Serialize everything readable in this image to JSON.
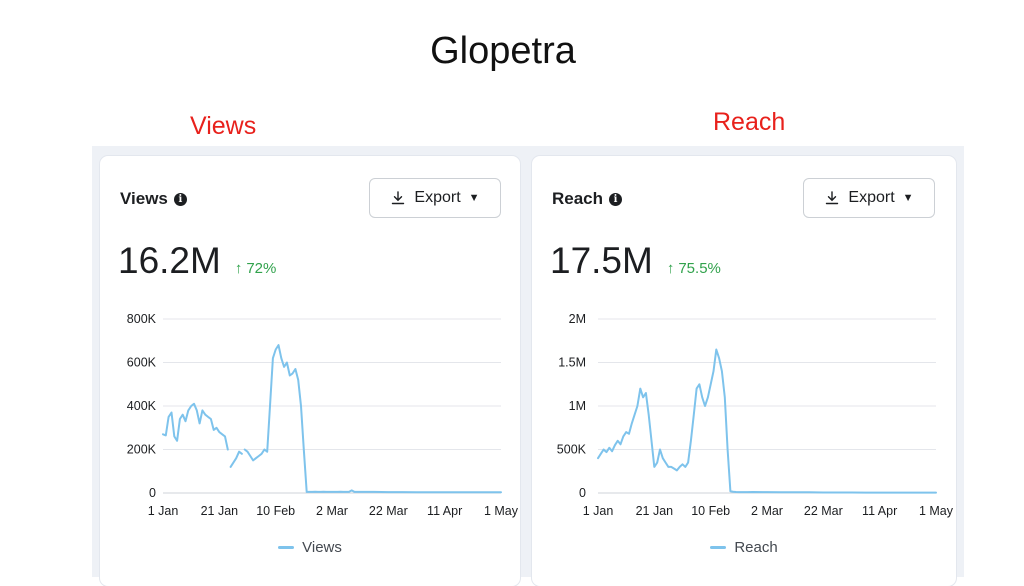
{
  "page_title": "Glopetra",
  "panels": [
    {
      "caption": "Views",
      "card_label": "Views",
      "info_icon": "info-icon",
      "export_label": "Export",
      "value": "16.2M",
      "delta": "72%",
      "legend": "Views"
    },
    {
      "caption": "Reach",
      "card_label": "Reach",
      "info_icon": "info-icon",
      "export_label": "Export",
      "value": "17.5M",
      "delta": "75.5%",
      "legend": "Reach"
    }
  ],
  "colors": {
    "line": "#7ec3ec",
    "caption": "#e8211c",
    "delta": "#31a24c"
  },
  "chart_data": [
    {
      "type": "line",
      "xlabel": "",
      "ylabel": "",
      "x_ticks": [
        "1 Jan",
        "21 Jan",
        "10 Feb",
        "2 Mar",
        "22 Mar",
        "11 Apr",
        "1 May"
      ],
      "y_ticks": [
        "0",
        "200K",
        "400K",
        "600K",
        "800K"
      ],
      "ylim": [
        0,
        800000
      ],
      "grid": true,
      "legend": "bottom-center",
      "series": [
        {
          "name": "Views",
          "x_day": [
            0,
            1,
            2,
            3,
            4,
            5,
            6,
            7,
            8,
            9,
            10,
            11,
            12,
            13,
            14,
            15,
            16,
            17,
            18,
            19,
            20,
            21,
            22,
            23,
            24,
            25,
            26,
            27,
            28,
            29,
            30,
            31,
            32,
            33,
            34,
            35,
            36,
            37,
            38,
            39,
            40,
            41,
            42,
            43,
            44,
            45,
            46,
            47,
            48,
            49,
            50,
            51,
            52,
            53,
            54,
            55,
            56,
            57,
            58,
            59,
            60,
            61,
            62,
            63,
            64,
            65,
            66,
            67,
            68,
            69,
            70,
            75,
            80,
            85,
            90,
            95,
            100,
            105,
            110,
            115,
            120
          ],
          "values": [
            270000,
            265000,
            350000,
            370000,
            260000,
            240000,
            340000,
            360000,
            330000,
            380000,
            400000,
            410000,
            380000,
            320000,
            380000,
            360000,
            350000,
            340000,
            290000,
            300000,
            280000,
            270000,
            260000,
            200000,
            120000,
            140000,
            160000,
            190000,
            180000,
            200000,
            190000,
            170000,
            150000,
            160000,
            170000,
            180000,
            200000,
            190000,
            400000,
            620000,
            660000,
            680000,
            620000,
            580000,
            600000,
            540000,
            550000,
            570000,
            520000,
            400000,
            200000,
            5000,
            5000,
            5000,
            6000,
            5000,
            5000,
            6000,
            5000,
            5000,
            5000,
            5000,
            5000,
            6000,
            5000,
            5000,
            5000,
            12000,
            5000,
            5000,
            5000,
            5000,
            4000,
            4000,
            3000,
            3000,
            3000,
            3000,
            3000,
            3000,
            3000
          ],
          "gaps_after_index": [
            23,
            28
          ]
        }
      ]
    },
    {
      "type": "line",
      "xlabel": "",
      "ylabel": "",
      "x_ticks": [
        "1 Jan",
        "21 Jan",
        "10 Feb",
        "2 Mar",
        "22 Mar",
        "11 Apr",
        "1 May"
      ],
      "y_ticks": [
        "0",
        "500K",
        "1M",
        "1.5M",
        "2M"
      ],
      "ylim": [
        0,
        2000000
      ],
      "grid": true,
      "legend": "bottom-center",
      "series": [
        {
          "name": "Reach",
          "x_day": [
            0,
            1,
            2,
            3,
            4,
            5,
            6,
            7,
            8,
            9,
            10,
            11,
            12,
            13,
            14,
            15,
            16,
            17,
            18,
            19,
            20,
            21,
            22,
            23,
            24,
            25,
            26,
            27,
            28,
            29,
            30,
            31,
            32,
            33,
            34,
            35,
            36,
            37,
            38,
            39,
            40,
            41,
            42,
            43,
            44,
            45,
            46,
            47,
            48,
            49,
            50,
            51,
            52,
            53,
            55,
            60,
            65,
            70,
            75,
            80,
            85,
            90,
            95,
            100,
            105,
            110,
            115,
            120
          ],
          "values": [
            400000,
            450000,
            500000,
            470000,
            520000,
            480000,
            550000,
            600000,
            560000,
            650000,
            700000,
            680000,
            800000,
            900000,
            1000000,
            1200000,
            1100000,
            1150000,
            900000,
            600000,
            300000,
            350000,
            500000,
            400000,
            350000,
            300000,
            300000,
            280000,
            260000,
            300000,
            330000,
            300000,
            350000,
            600000,
            900000,
            1200000,
            1250000,
            1100000,
            1000000,
            1100000,
            1250000,
            1400000,
            1650000,
            1550000,
            1400000,
            1100000,
            500000,
            20000,
            15000,
            12000,
            10000,
            10000,
            10000,
            10000,
            12000,
            10000,
            8000,
            8000,
            8000,
            6000,
            6000,
            6000,
            5000,
            5000,
            5000,
            5000,
            5000,
            5000
          ],
          "gaps_after_index": []
        }
      ]
    }
  ]
}
